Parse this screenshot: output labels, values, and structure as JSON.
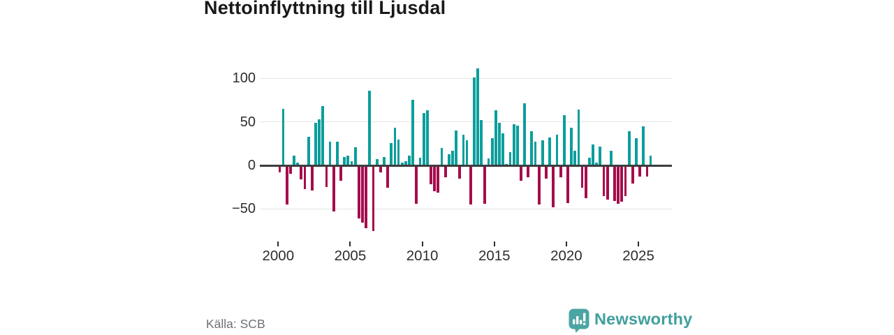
{
  "title": "Nettoinflyttning till Ljusdal",
  "source": "Källa: SCB",
  "brand": {
    "name": "Newsworthy",
    "icon": "bar-chart-speech-bubble-icon",
    "icon_color": "#4ba5a2",
    "text_color": "#3f9f9e"
  },
  "chart_data": {
    "type": "bar",
    "title": "Nettoinflyttning till Ljusdal",
    "frequency": "quarterly",
    "x_start": "2000-Q1",
    "x_end": "2025-Q4",
    "values": [
      -8,
      65,
      -45,
      -10,
      11,
      3,
      -16,
      -27,
      33,
      -29,
      49,
      53,
      68,
      -25,
      27,
      -53,
      27,
      -18,
      10,
      11,
      5,
      21,
      -61,
      -66,
      -72,
      86,
      -75,
      7,
      -8,
      10,
      -26,
      26,
      43,
      30,
      3,
      5,
      11,
      75,
      -44,
      9,
      60,
      63,
      -22,
      -30,
      -31,
      20,
      -14,
      13,
      17,
      40,
      -15,
      35,
      29,
      -45,
      101,
      111,
      52,
      -44,
      8,
      31,
      63,
      49,
      37,
      2,
      15,
      47,
      46,
      -18,
      71,
      -14,
      39,
      27,
      -45,
      29,
      -15,
      32,
      -48,
      35,
      -14,
      58,
      -43,
      43,
      17,
      64,
      -26,
      -38,
      9,
      24,
      3,
      22,
      -35,
      -39,
      17,
      -41,
      -44,
      -42,
      -35,
      39,
      -21,
      31,
      -13,
      45,
      -13,
      11
    ],
    "x_ticks": [
      2000,
      2005,
      2010,
      2015,
      2020,
      2025
    ],
    "x_tick_labels": [
      "2000",
      "2005",
      "2010",
      "2015",
      "2020",
      "2025"
    ],
    "y_ticks": [
      100,
      50,
      0,
      -50
    ],
    "y_tick_labels": [
      "100",
      "50",
      "0",
      "−50"
    ],
    "ylim": [
      -80,
      115
    ],
    "grid": "horizontal",
    "legend": "none",
    "positive_color": "#0b9e9c",
    "negative_color": "#a50c4d",
    "zero_line_color": "#3d3d3d",
    "gridline_color": "#e3e3e3"
  }
}
